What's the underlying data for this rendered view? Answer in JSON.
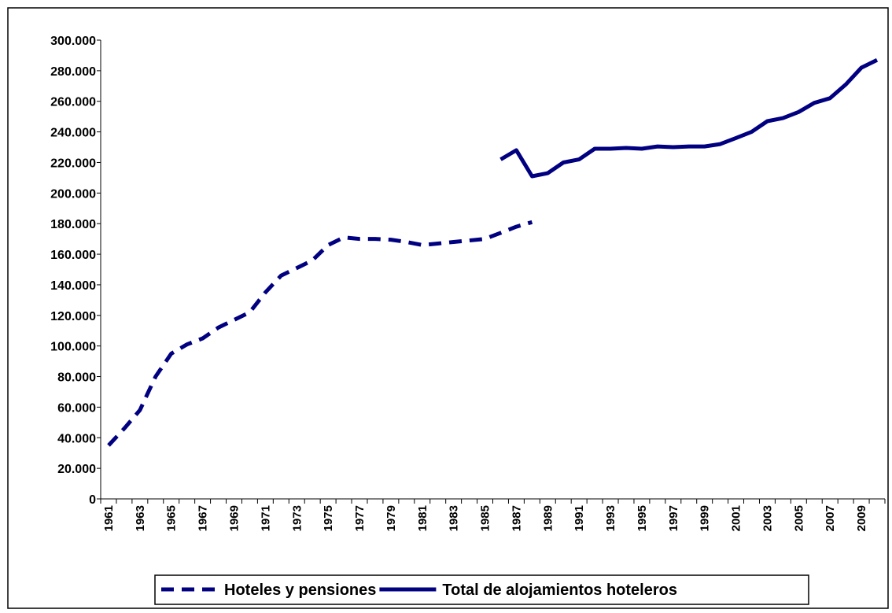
{
  "chart_data": {
    "type": "line",
    "categories": [
      "1961",
      null,
      "1963",
      null,
      "1965",
      null,
      "1967",
      null,
      "1969",
      null,
      "1971",
      null,
      "1973",
      null,
      "1975",
      null,
      "1977",
      null,
      "1979",
      null,
      "1981",
      null,
      "1983",
      null,
      "1985",
      null,
      "1987",
      null,
      "1989",
      null,
      "1991",
      null,
      "1993",
      null,
      "1995",
      null,
      "1997",
      null,
      "1999",
      null,
      "2001",
      null,
      "2003",
      null,
      "2005",
      null,
      "2007",
      null,
      "2009",
      null
    ],
    "series": [
      {
        "name": "Hoteles y pensiones",
        "color": "#000080",
        "dashed": true,
        "values": [
          35000,
          46000,
          58000,
          80000,
          95000,
          101000,
          105000,
          112000,
          117000,
          122000,
          135000,
          146000,
          151000,
          156000,
          166000,
          171000,
          170000,
          170000,
          169500,
          168000,
          166000,
          167000,
          168000,
          169000,
          170000,
          174000,
          178000,
          181000,
          null,
          null,
          null,
          null,
          null,
          null,
          null,
          null,
          null,
          null,
          null,
          null,
          null,
          null,
          null,
          null,
          null,
          null,
          null,
          null,
          null,
          null
        ]
      },
      {
        "name": "Total de alojamientos hoteleros",
        "color": "#000080",
        "dashed": false,
        "values": [
          null,
          null,
          null,
          null,
          null,
          null,
          null,
          null,
          null,
          null,
          null,
          null,
          null,
          null,
          null,
          null,
          null,
          null,
          null,
          null,
          null,
          null,
          null,
          null,
          null,
          222000,
          228000,
          211000,
          213000,
          220000,
          222000,
          229000,
          229000,
          229500,
          229000,
          230500,
          230000,
          230500,
          230500,
          232000,
          236000,
          240000,
          247000,
          249000,
          253000,
          259000,
          262000,
          271000,
          282000,
          287000
        ]
      }
    ],
    "ylim": [
      0,
      300000
    ],
    "yticks": [
      0,
      {
        "value": 20000,
        "label": "20.000"
      },
      {
        "value": 40000,
        "label": "40.000"
      },
      {
        "value": 60000,
        "label": "60.000"
      },
      {
        "value": 80000,
        "label": "80.000"
      },
      {
        "value": 100000,
        "label": "100.000"
      },
      {
        "value": 120000,
        "label": "120.000"
      },
      {
        "value": 140000,
        "label": "140.000"
      },
      {
        "value": 160000,
        "label": "160.000"
      },
      {
        "value": 180000,
        "label": "180.000"
      },
      {
        "value": 200000,
        "label": "200.000"
      },
      {
        "value": 220000,
        "label": "220.000"
      },
      {
        "value": 240000,
        "label": "240.000"
      },
      {
        "value": 260000,
        "label": "260.000"
      },
      {
        "value": 280000,
        "label": "280.000"
      },
      {
        "value": 300000,
        "label": "300.000"
      }
    ],
    "grid": false,
    "legend": "bottom"
  }
}
